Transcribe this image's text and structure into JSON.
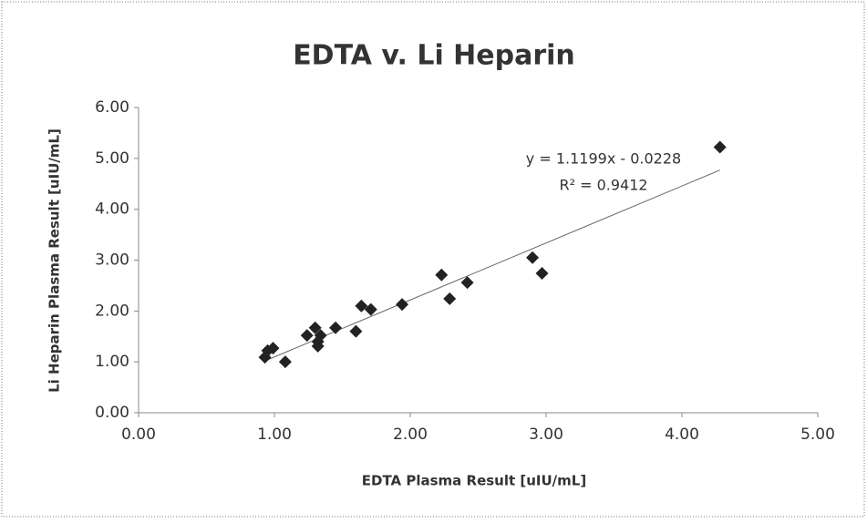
{
  "chart_data": {
    "type": "scatter",
    "title": "EDTA v. Li Heparin",
    "x_label": "EDTA Plasma Result [uIU/mL]",
    "y_label": "Li Heparin Plasma Result [uIU/mL]",
    "x": [
      0.95,
      0.99,
      0.93,
      1.08,
      1.24,
      1.3,
      1.32,
      1.34,
      1.32,
      1.45,
      1.6,
      1.64,
      1.71,
      1.94,
      2.23,
      2.29,
      2.42,
      2.9,
      2.97,
      4.28
    ],
    "values": [
      1.22,
      1.27,
      1.09,
      1.0,
      1.52,
      1.67,
      1.4,
      1.52,
      1.31,
      1.67,
      1.6,
      2.1,
      2.03,
      2.13,
      2.71,
      2.24,
      2.56,
      3.05,
      2.74,
      5.22
    ],
    "color": "#222222",
    "xlim": [
      0,
      5
    ],
    "ylim": [
      0,
      6
    ],
    "xticks": [
      {
        "value": 0,
        "label": "0.00"
      },
      {
        "value": 1,
        "label": "1.00"
      },
      {
        "value": 2,
        "label": "2.00"
      },
      {
        "value": 3,
        "label": "3.00"
      },
      {
        "value": 4,
        "label": "4.00"
      },
      {
        "value": 5,
        "label": "5.00"
      }
    ],
    "yticks": [
      {
        "value": 0,
        "label": "0.00"
      },
      {
        "value": 1,
        "label": "1.00"
      },
      {
        "value": 2,
        "label": "2.00"
      },
      {
        "value": 3,
        "label": "3.00"
      },
      {
        "value": 4,
        "label": "4.00"
      },
      {
        "value": 5,
        "label": "5.00"
      },
      {
        "value": 6,
        "label": "6.00"
      }
    ],
    "trendline": {
      "slope": 1.1199,
      "intercept": -0.0228,
      "equation": "y = 1.1199x - 0.0228",
      "r_squared": 0.9412,
      "r_squared_label": "R² = 0.9412"
    },
    "grid": false
  }
}
